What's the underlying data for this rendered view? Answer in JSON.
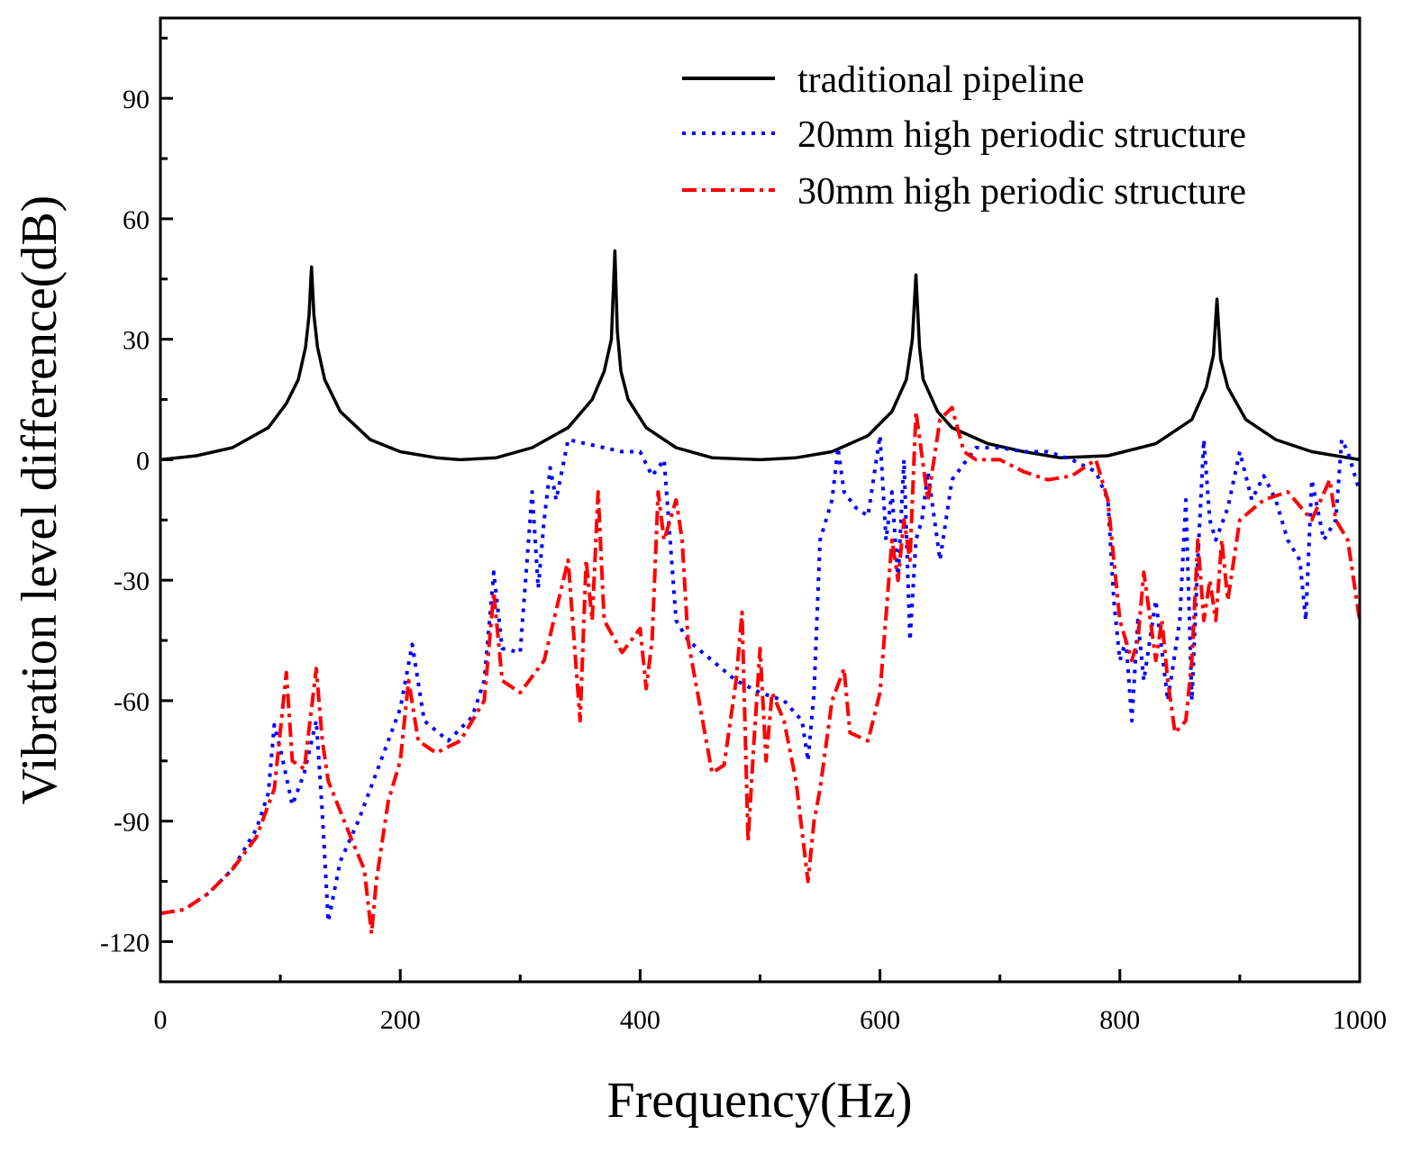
{
  "chart_data": {
    "type": "line",
    "title": "",
    "xlabel": "Frequency(Hz)",
    "ylabel": "Vibration level difference(dB)",
    "xlim": [
      0,
      1000
    ],
    "ylim": [
      -130,
      110
    ],
    "xticks": [
      0,
      200,
      400,
      600,
      800,
      1000
    ],
    "xtick_labels": [
      "0",
      "200",
      "400",
      "600",
      "800",
      "1000"
    ],
    "yticks": [
      -120,
      -90,
      -60,
      -30,
      0,
      30,
      60,
      90
    ],
    "ytick_labels": [
      "-120",
      "-90",
      "-60",
      "-30",
      "0",
      "30",
      "60",
      "90"
    ],
    "grid": false,
    "legend_position": "top-right",
    "series": [
      {
        "name": "traditional pipeline",
        "color": "#000000",
        "style": "solid",
        "x": [
          0,
          30,
          60,
          90,
          105,
          115,
          121,
          124,
          126,
          128,
          131,
          137,
          150,
          175,
          200,
          230,
          250,
          280,
          310,
          340,
          360,
          370,
          376,
          379,
          381,
          384,
          390,
          405,
          430,
          460,
          500,
          530,
          560,
          590,
          610,
          622,
          627,
          630,
          633,
          636,
          645,
          648,
          660,
          690,
          720,
          750,
          790,
          830,
          860,
          872,
          878,
          881,
          884,
          890,
          905,
          930,
          960,
          990,
          1000
        ],
        "y": [
          0,
          1,
          3,
          8,
          14,
          20,
          28,
          36,
          48,
          36,
          28,
          20,
          12,
          5,
          2,
          0.5,
          0,
          0.5,
          3,
          8,
          15,
          22,
          30,
          52,
          32,
          22,
          15,
          8,
          3,
          0.5,
          0,
          0.5,
          2,
          6,
          12,
          20,
          30,
          46,
          28,
          20,
          14,
          12,
          8,
          4,
          2,
          0.5,
          1,
          4,
          10,
          18,
          26,
          40,
          25,
          18,
          10,
          5,
          2,
          0.5,
          0
        ]
      },
      {
        "name": "20mm high periodic structure",
        "color": "#0000ff",
        "style": "dotted",
        "x": [
          0,
          20,
          40,
          60,
          80,
          90,
          95,
          100,
          110,
          120,
          130,
          135,
          140,
          150,
          165,
          180,
          200,
          210,
          220,
          240,
          260,
          270,
          278,
          285,
          300,
          310,
          315,
          320,
          325,
          330,
          340,
          355,
          370,
          385,
          400,
          410,
          420,
          425,
          430,
          440,
          460,
          480,
          500,
          520,
          535,
          540,
          545,
          550,
          560,
          565,
          570,
          580,
          590,
          600,
          605,
          610,
          615,
          620,
          625,
          630,
          635,
          640,
          650,
          660,
          680,
          700,
          720,
          740,
          760,
          780,
          790,
          795,
          800,
          805,
          810,
          815,
          820,
          830,
          840,
          850,
          855,
          860,
          865,
          870,
          875,
          880,
          890,
          900,
          910,
          920,
          930,
          940,
          950,
          955,
          960,
          970,
          980,
          985,
          990,
          1000
        ],
        "y": [
          -113,
          -112,
          -108,
          -102,
          -92,
          -83,
          -66,
          -72,
          -86,
          -78,
          -65,
          -88,
          -115,
          -100,
          -90,
          -78,
          -62,
          -46,
          -65,
          -70,
          -64,
          -55,
          -28,
          -47,
          -48,
          -8,
          -32,
          -15,
          -2,
          -10,
          5,
          4,
          3,
          2,
          2,
          -4,
          0,
          -20,
          -40,
          -45,
          -50,
          -55,
          -58,
          -60,
          -65,
          -75,
          -58,
          -20,
          -10,
          3,
          -8,
          -12,
          -14,
          6,
          -20,
          -8,
          -30,
          0,
          -45,
          -20,
          -15,
          -3,
          -25,
          -5,
          3,
          3,
          2,
          2,
          0,
          -3,
          -10,
          -35,
          -50,
          -45,
          -65,
          -40,
          -55,
          -35,
          -60,
          -40,
          -10,
          -60,
          -25,
          5,
          -15,
          -20,
          -12,
          2,
          -10,
          -4,
          -10,
          -20,
          -25,
          -40,
          -5,
          -20,
          -15,
          5,
          2,
          -8
        ]
      },
      {
        "name": "30mm high periodic structure",
        "color": "#ff0000",
        "style": "dashdot",
        "x": [
          0,
          20,
          40,
          60,
          80,
          95,
          105,
          110,
          120,
          130,
          135,
          140,
          160,
          170,
          176,
          180,
          190,
          200,
          207,
          215,
          230,
          250,
          270,
          278,
          285,
          300,
          320,
          340,
          350,
          355,
          360,
          365,
          370,
          385,
          400,
          405,
          410,
          415,
          420,
          425,
          430,
          435,
          440,
          460,
          470,
          480,
          485,
          490,
          495,
          500,
          505,
          510,
          520,
          530,
          540,
          545,
          550,
          560,
          570,
          575,
          590,
          600,
          610,
          615,
          620,
          625,
          630,
          640,
          650,
          660,
          670,
          680,
          700,
          720,
          740,
          760,
          780,
          790,
          800,
          810,
          815,
          820,
          830,
          835,
          840,
          846,
          855,
          860,
          865,
          870,
          875,
          880,
          885,
          890,
          900,
          920,
          940,
          960,
          975,
          980,
          990,
          1000
        ],
        "y": [
          -113,
          -112,
          -108,
          -102,
          -94,
          -82,
          -53,
          -75,
          -77,
          -52,
          -70,
          -80,
          -95,
          -102,
          -118,
          -105,
          -85,
          -75,
          -55,
          -70,
          -73,
          -70,
          -60,
          -33,
          -55,
          -58,
          -50,
          -25,
          -65,
          -25,
          -40,
          -8,
          -40,
          -48,
          -42,
          -57,
          -45,
          -8,
          -20,
          -15,
          -10,
          -20,
          -45,
          -78,
          -76,
          -55,
          -38,
          -95,
          -70,
          -47,
          -75,
          -58,
          -65,
          -80,
          -105,
          -90,
          -82,
          -60,
          -52,
          -68,
          -70,
          -58,
          -20,
          -30,
          -15,
          -25,
          12,
          -10,
          10,
          13,
          2,
          0,
          0,
          -3,
          -5,
          -4,
          0,
          -10,
          -40,
          -50,
          -45,
          -28,
          -50,
          -40,
          -55,
          -68,
          -65,
          -50,
          -20,
          -40,
          -30,
          -40,
          -20,
          -35,
          -15,
          -10,
          -8,
          -15,
          -5,
          -15,
          -20,
          -40
        ]
      }
    ]
  }
}
